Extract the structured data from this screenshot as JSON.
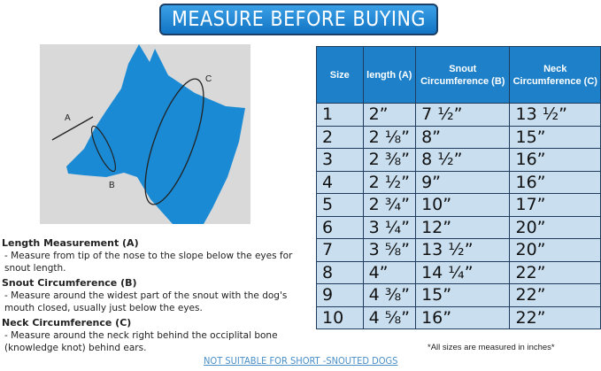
{
  "title": "MEASURE BEFORE BUYING",
  "diagram": {
    "labels": [
      "A",
      "B",
      "C"
    ],
    "dog_color": "#1a8ad4",
    "background": "#d9d9d9"
  },
  "instructions": [
    {
      "heading": "Length Measurement (A)",
      "text": "- Measure from tip of the nose to the slope below the eyes for snout length."
    },
    {
      "heading": "Snout Circumference (B)",
      "text": "- Measure around the widest part of the snout with the dog's mouth closed, usually just below the eyes."
    },
    {
      "heading": "Neck Circumference (C)",
      "text": "- Measure around the neck right behind the occiplital bone (knowledge knot) behind ears."
    }
  ],
  "table": {
    "headers": [
      "Size",
      "length (A)",
      "Snout Circumference (B)",
      "Neck Circumference (C)"
    ],
    "rows": [
      [
        "1",
        "2”",
        "7 ½”",
        "13 ½”"
      ],
      [
        "2",
        "2 ⅛”",
        "8”",
        "15”"
      ],
      [
        "3",
        "2 ⅜”",
        "8 ½”",
        "16”"
      ],
      [
        "4",
        "2 ½”",
        "9”",
        "16”"
      ],
      [
        "5",
        "2 ¾”",
        "10”",
        "17”"
      ],
      [
        "6",
        "3 ¼”",
        "12”",
        "20”"
      ],
      [
        "7",
        "3 ⅝”",
        "13 ½”",
        "20”"
      ],
      [
        "8",
        "4”",
        "14 ¼”",
        "22”"
      ],
      [
        "9",
        "4 ⅜”",
        "15”",
        "22”"
      ],
      [
        "10",
        "4 ⅝”",
        "16”",
        "22”"
      ]
    ],
    "header_color": "#1d80c8",
    "row_color": "#c9dff0"
  },
  "note": "*All sizes are measured in inches*",
  "warning_link": "NOT SUITABLE FOR SHORT -SNOUTED DOGS"
}
